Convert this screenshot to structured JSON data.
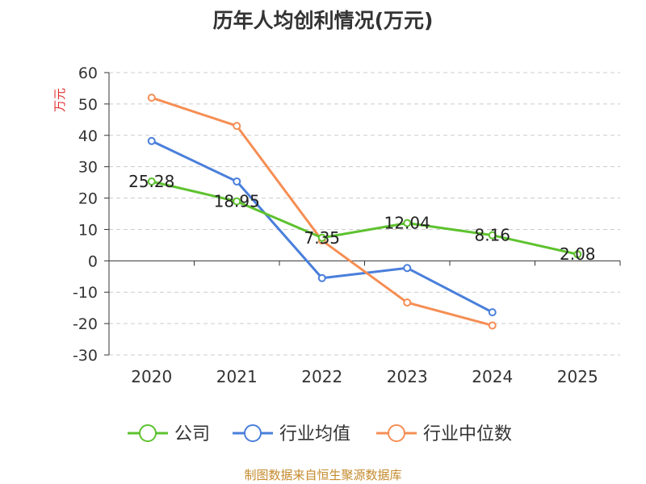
{
  "chart_data": {
    "type": "line",
    "title": "历年人均创利情况(万元)",
    "ylabel": "万元",
    "ylim": [
      -30,
      60
    ],
    "yticks": [
      "60",
      "50",
      "40",
      "30",
      "20",
      "10",
      "0",
      "-10",
      "-20",
      "-30"
    ],
    "categories": [
      "2020",
      "2021",
      "2022",
      "2023",
      "2024",
      "2025"
    ],
    "grid": true,
    "legend_position": "bottom",
    "series": [
      {
        "name": "公司",
        "color": "#5ec22f",
        "values": [
          25.28,
          18.95,
          7.35,
          12.04,
          8.16,
          2.08
        ],
        "labels": [
          "25.28",
          "18.95",
          "7.35",
          "12.04",
          "8.16",
          "2.08"
        ]
      },
      {
        "name": "行业均值",
        "color": "#4a7fdb",
        "values": [
          38.2,
          25.3,
          -5.5,
          -2.3,
          -16.4,
          null
        ]
      },
      {
        "name": "行业中位数",
        "color": "#f58e54",
        "values": [
          52.0,
          43.0,
          6.5,
          -13.3,
          -20.6,
          null
        ]
      }
    ]
  },
  "footer": "制图数据来自恒生聚源数据库"
}
